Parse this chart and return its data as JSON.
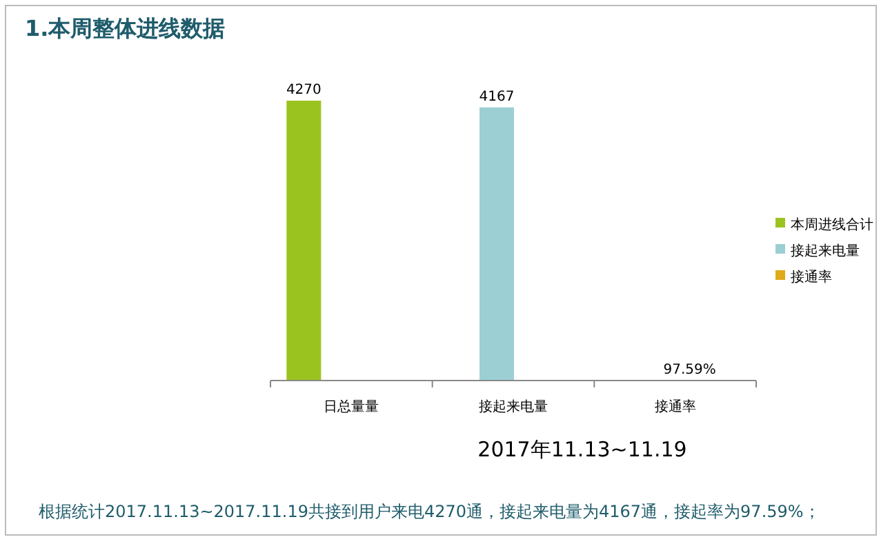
{
  "chart_data": {
    "type": "bar",
    "title": "1.本周整体进线数据",
    "xlabel": "2017年11.13~11.19",
    "categories": [
      "日总量量",
      "接起来电量",
      "接通率"
    ],
    "series": [
      {
        "name": "本周进线合计",
        "color": "#9bc31f",
        "values": [
          4270,
          null,
          null
        ]
      },
      {
        "name": "接起来电量",
        "color": "#9ccfd4",
        "values": [
          null,
          4167,
          null
        ]
      },
      {
        "name": "接通率",
        "color": "#e0aa1a",
        "values": [
          null,
          null,
          0.9759
        ],
        "value_labels": [
          null,
          null,
          "97.59%"
        ]
      }
    ],
    "data_labels": true,
    "legend": "right",
    "grid": false,
    "annotations": [
      "根据统计2017.11.13~2017.11.19共接到用户来电4270通，接起来电量为4167通，接起率为97.59%；"
    ]
  }
}
